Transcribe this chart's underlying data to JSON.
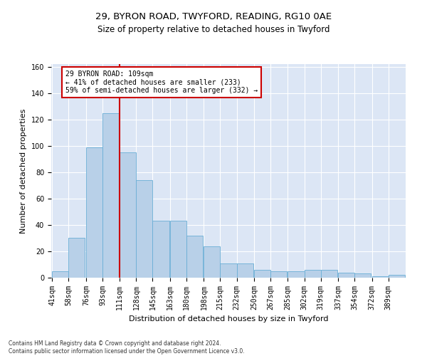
{
  "title1": "29, BYRON ROAD, TWYFORD, READING, RG10 0AE",
  "title2": "Size of property relative to detached houses in Twyford",
  "xlabel": "Distribution of detached houses by size in Twyford",
  "ylabel": "Number of detached properties",
  "footer1": "Contains HM Land Registry data © Crown copyright and database right 2024.",
  "footer2": "Contains public sector information licensed under the Open Government Licence v3.0.",
  "annotation_line1": "29 BYRON ROAD: 109sqm",
  "annotation_line2": "← 41% of detached houses are smaller (233)",
  "annotation_line3": "59% of semi-detached houses are larger (332) →",
  "bar_color": "#b8d0e8",
  "bar_edge_color": "#6aaed6",
  "vline_color": "#cc0000",
  "annotation_box_edge": "#cc0000",
  "bg_color": "#dce6f5",
  "grid_color": "#ffffff",
  "bins": [
    41,
    58,
    76,
    93,
    111,
    128,
    145,
    163,
    180,
    198,
    215,
    232,
    250,
    267,
    285,
    302,
    319,
    337,
    354,
    372,
    389
  ],
  "counts": [
    5,
    30,
    99,
    125,
    95,
    74,
    43,
    43,
    32,
    24,
    11,
    11,
    6,
    5,
    5,
    6,
    6,
    4,
    3,
    1,
    2
  ],
  "vline_x": 111,
  "ylim": [
    0,
    162
  ],
  "yticks": [
    0,
    20,
    40,
    60,
    80,
    100,
    120,
    140,
    160
  ],
  "title1_fontsize": 9.5,
  "title2_fontsize": 8.5,
  "xlabel_fontsize": 8,
  "ylabel_fontsize": 8,
  "tick_fontsize": 7,
  "footer_fontsize": 5.5,
  "annotation_fontsize": 7
}
